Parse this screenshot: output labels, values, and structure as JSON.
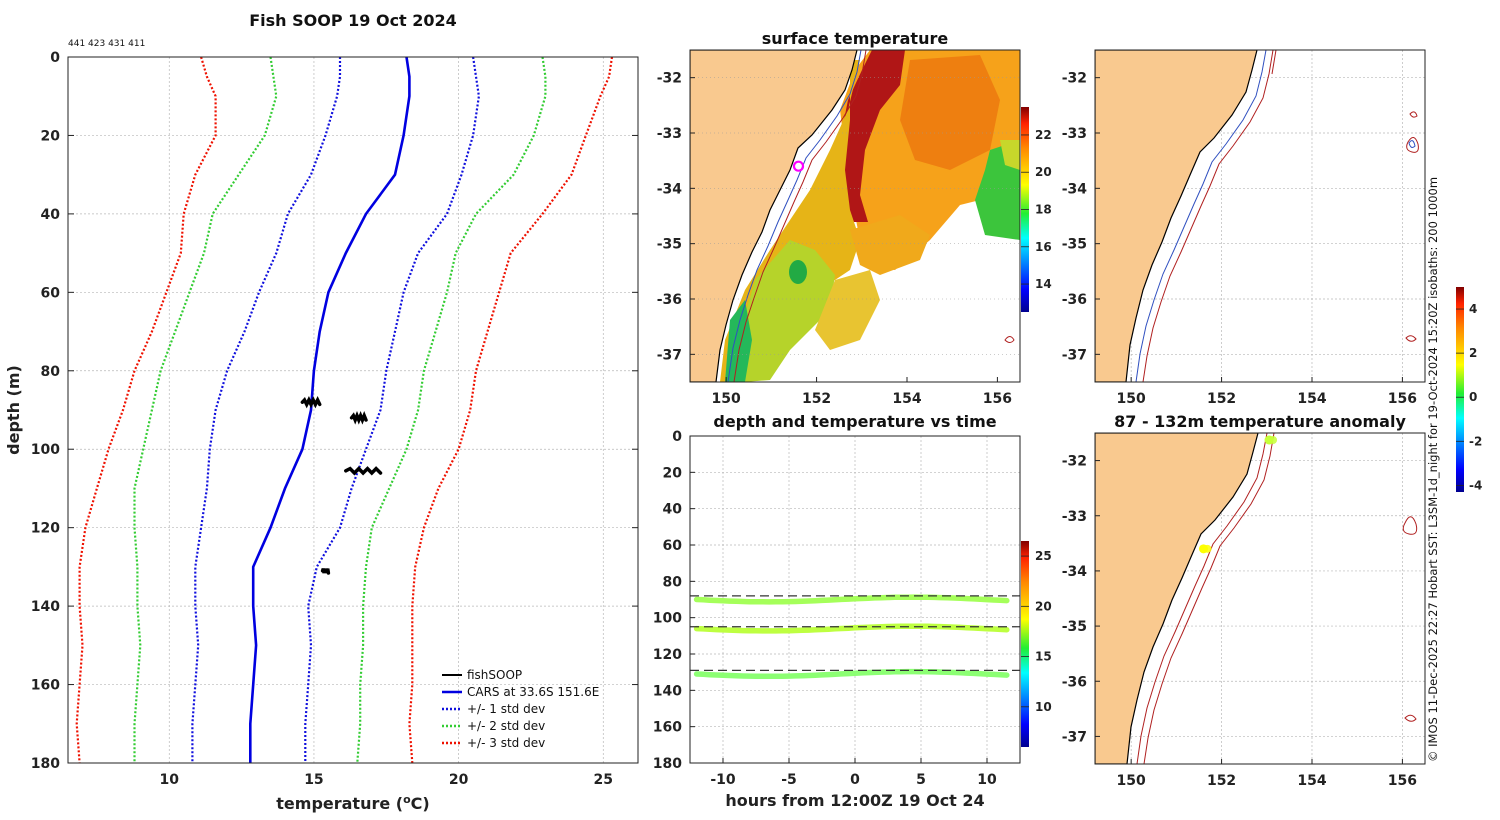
{
  "colors": {
    "cars": "#0000e0",
    "std1": "#1010dd",
    "std2": "#33cc33",
    "std3": "#ee1100",
    "fishsoop": "#000000",
    "land": "#f9c98f",
    "isobath_200": "#3050c0",
    "isobath_1000": "#b02020"
  },
  "header": {
    "station_ids": "441 423 431 411",
    "side_caption": "© IMOS 11-Dec-2025 22:27 Hobart SST: L3SM-1d_night for 19-Oct-2024 15:20Z isobaths: 200  1000m"
  },
  "chart_data": [
    {
      "id": "profile",
      "type": "line",
      "title": "Fish SOOP 19 Oct 2024",
      "xlabel": "temperature (",
      "xlabel_sup": "o",
      "xlabel_unit": "C)",
      "ylabel": "depth (m)",
      "xlim": [
        6.5,
        26.2
      ],
      "ylim": [
        0,
        180
      ],
      "xticks": [
        10,
        15,
        20,
        25
      ],
      "yticks": [
        0,
        20,
        40,
        60,
        80,
        100,
        120,
        140,
        160,
        180
      ],
      "depth": [
        0,
        5,
        10,
        20,
        30,
        40,
        50,
        60,
        70,
        80,
        90,
        100,
        110,
        120,
        130,
        140,
        150,
        160,
        170,
        180
      ],
      "cars_mean": [
        18.2,
        18.3,
        18.3,
        18.1,
        17.8,
        16.8,
        16.1,
        15.5,
        15.2,
        15.0,
        14.9,
        14.6,
        14.0,
        13.5,
        12.9,
        12.9,
        13.0,
        12.9,
        12.8,
        12.8
      ],
      "std1_low": [
        15.9,
        15.9,
        15.8,
        15.4,
        14.9,
        14.1,
        13.7,
        13.1,
        12.6,
        12.0,
        11.6,
        11.4,
        11.3,
        11.1,
        10.9,
        10.9,
        11.0,
        10.9,
        10.8,
        10.8
      ],
      "std1_high": [
        20.5,
        20.6,
        20.7,
        20.5,
        20.1,
        19.6,
        18.6,
        18.1,
        17.8,
        17.5,
        17.3,
        16.8,
        16.3,
        15.9,
        15.1,
        14.8,
        14.9,
        14.8,
        14.7,
        14.7
      ],
      "std2_low": [
        13.5,
        13.6,
        13.7,
        13.3,
        12.4,
        11.5,
        11.2,
        10.7,
        10.2,
        9.7,
        9.4,
        9.1,
        8.8,
        8.8,
        8.9,
        8.9,
        9.0,
        8.9,
        8.8,
        8.8
      ],
      "std2_high": [
        22.9,
        23.0,
        23.0,
        22.6,
        21.9,
        20.6,
        19.9,
        19.6,
        19.2,
        18.8,
        18.6,
        18.2,
        17.6,
        17.0,
        16.8,
        16.7,
        16.7,
        16.6,
        16.6,
        16.5
      ],
      "std3_low": [
        11.1,
        11.3,
        11.6,
        11.6,
        10.9,
        10.5,
        10.4,
        9.9,
        9.4,
        8.8,
        8.4,
        7.9,
        7.5,
        7.1,
        6.9,
        6.9,
        7.0,
        6.9,
        6.8,
        6.9
      ],
      "std3_high": [
        25.3,
        25.2,
        24.9,
        24.4,
        23.9,
        22.9,
        21.8,
        21.4,
        21.0,
        20.6,
        20.4,
        20.0,
        19.3,
        18.8,
        18.5,
        18.4,
        18.4,
        18.4,
        18.3,
        18.4
      ],
      "fishsoop_segments": [
        {
          "depth": 88,
          "t_start": 14.6,
          "t_end": 15.2
        },
        {
          "depth": 92,
          "t_start": 16.3,
          "t_end": 16.8
        },
        {
          "depth": 105.5,
          "t_start": 16.1,
          "t_end": 17.3
        },
        {
          "depth": 131,
          "t_start": 15.3,
          "t_end": 15.5
        }
      ],
      "legend": [
        "fishSOOP",
        "CARS at 33.6S 151.6E",
        "+/- 1 std dev",
        "+/- 2 std dev",
        "+/- 3 std dev"
      ]
    },
    {
      "id": "sst_map",
      "type": "heatmap",
      "title": "surface temperature",
      "xlim": [
        149.2,
        156.5
      ],
      "ylim": [
        -37.5,
        -31.5
      ],
      "xticks": [
        150,
        152,
        154,
        156
      ],
      "yticks": [
        -32,
        -33,
        -34,
        -35,
        -36,
        -37
      ],
      "colorbar_ticks": [
        14,
        16,
        18,
        20,
        22
      ],
      "colorbar_range": [
        12.5,
        23.5
      ],
      "marker": {
        "lon": 151.6,
        "lat": -33.6
      }
    },
    {
      "id": "depth_time",
      "type": "scatter",
      "title": "depth and temperature vs time",
      "xlabel": "hours from 12:00Z 19 Oct 24",
      "xlim": [
        -12.5,
        12.5
      ],
      "ylim": [
        0,
        180
      ],
      "xticks": [
        -10,
        -5,
        0,
        5,
        10
      ],
      "yticks": [
        0,
        20,
        40,
        60,
        80,
        100,
        120,
        140,
        160,
        180
      ],
      "reference_depths": [
        88,
        105,
        129
      ],
      "tracks": [
        {
          "depth": 90,
          "temp": 17.0
        },
        {
          "depth": 106,
          "temp": 17.5
        },
        {
          "depth": 131,
          "temp": 16.5
        }
      ],
      "colorbar_ticks": [
        10,
        15,
        20,
        25
      ],
      "colorbar_range": [
        6,
        26.5
      ]
    },
    {
      "id": "isobath_map",
      "type": "heatmap",
      "xlim": [
        149.2,
        156.5
      ],
      "ylim": [
        -37.5,
        -31.5
      ],
      "xticks": [
        150,
        152,
        154,
        156
      ],
      "yticks": [
        -32,
        -33,
        -34,
        -35,
        -36,
        -37
      ]
    },
    {
      "id": "anomaly_map",
      "type": "heatmap",
      "title": "87 - 132m temperature anomaly",
      "xlim": [
        149.2,
        156.5
      ],
      "ylim": [
        -37.5,
        -31.5
      ],
      "xticks": [
        150,
        152,
        154,
        156
      ],
      "yticks": [
        -32,
        -33,
        -34,
        -35,
        -36,
        -37
      ],
      "points": [
        {
          "lon": 151.6,
          "lat": -33.6,
          "anom": 1.5
        },
        {
          "lon": 153.05,
          "lat": -31.6,
          "anom": 1.0
        }
      ],
      "colorbar_ticks": [
        -4,
        -2,
        0,
        2,
        4
      ],
      "colorbar_range": [
        -4.3,
        5
      ]
    }
  ]
}
